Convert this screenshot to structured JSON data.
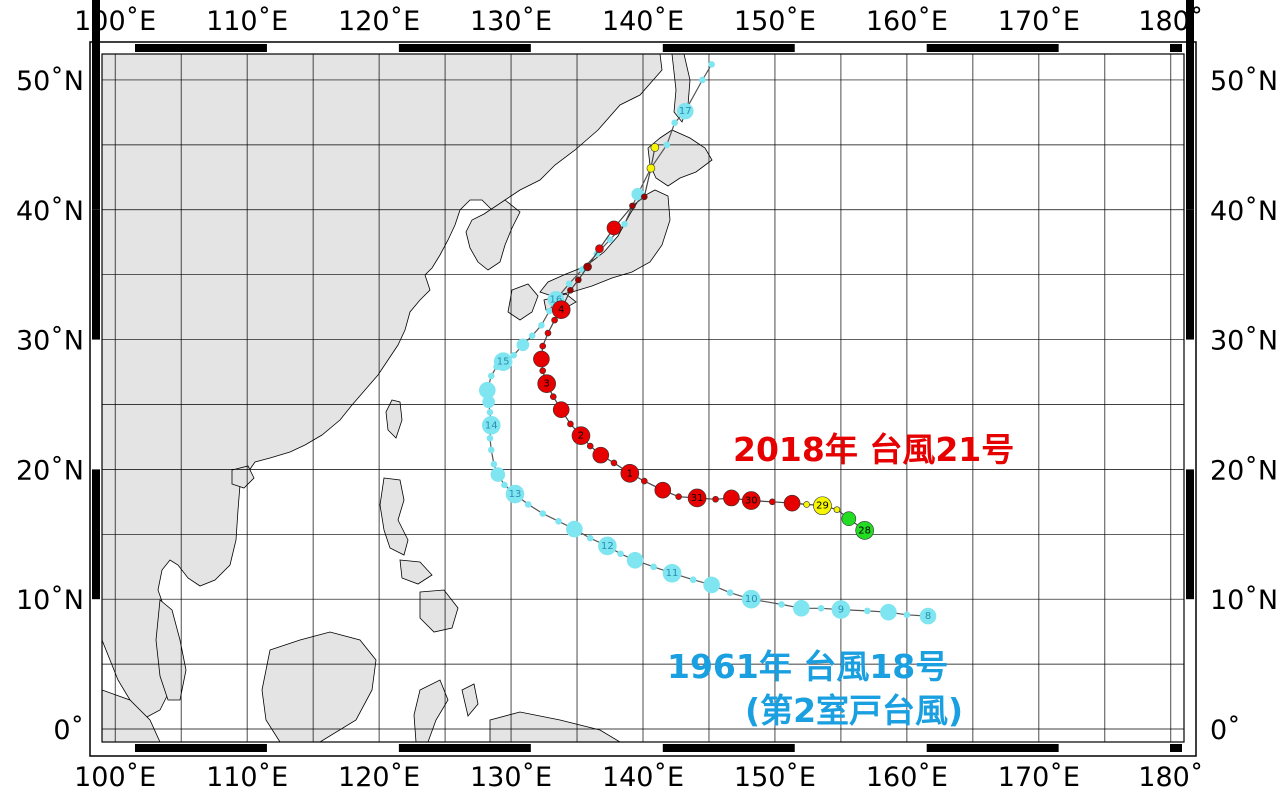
{
  "axes": {
    "lon_labels": [
      "100˚E",
      "110˚E",
      "120˚E",
      "130˚E",
      "140˚E",
      "150˚E",
      "160˚E",
      "170˚E",
      "180˚"
    ],
    "lat_labels": [
      "50˚N",
      "40˚N",
      "30˚N",
      "20˚N",
      "10˚N",
      "0˚"
    ],
    "lon_range": [
      99,
      181
    ],
    "lat_range": [
      -1,
      52
    ],
    "grid_step_deg": 5
  },
  "colors": {
    "land": "#e4e4e4",
    "sea": "#ffffff",
    "track_1961": "#7fe5f0",
    "track_1961_text": "#1a9fe0",
    "track_2018_red": "#e60000",
    "track_2018_dark": "#a00000",
    "track_2018_yellow": "#f6f600",
    "track_2018_green": "#22dd22",
    "label_2018": "#e60000",
    "label_1961": "#1a9fe0"
  },
  "labels": {
    "typhoon_2018": "2018年 台風21号",
    "typhoon_1961_line1": "1961年 台風18号",
    "typhoon_1961_line2": "(第2室戸台風)"
  },
  "tracks": {
    "typhoon_2018": [
      {
        "lon": 156.8,
        "lat": 15.3,
        "r": 9,
        "c": "green",
        "n": "28"
      },
      {
        "lon": 155.6,
        "lat": 16.2,
        "r": 7,
        "c": "green"
      },
      {
        "lon": 154.7,
        "lat": 16.9,
        "r": 3,
        "c": "yellow"
      },
      {
        "lon": 153.6,
        "lat": 17.2,
        "r": 9,
        "c": "yellow",
        "n": "29"
      },
      {
        "lon": 152.4,
        "lat": 17.3,
        "r": 3,
        "c": "yellow"
      },
      {
        "lon": 151.3,
        "lat": 17.4,
        "r": 8,
        "c": "red"
      },
      {
        "lon": 149.8,
        "lat": 17.5,
        "r": 3,
        "c": "red"
      },
      {
        "lon": 148.2,
        "lat": 17.6,
        "r": 9,
        "c": "red",
        "n": "30"
      },
      {
        "lon": 146.7,
        "lat": 17.8,
        "r": 8,
        "c": "red"
      },
      {
        "lon": 145.5,
        "lat": 17.7,
        "r": 3,
        "c": "red"
      },
      {
        "lon": 144.1,
        "lat": 17.8,
        "r": 9,
        "c": "red",
        "n": "31"
      },
      {
        "lon": 142.7,
        "lat": 17.9,
        "r": 3,
        "c": "red"
      },
      {
        "lon": 141.5,
        "lat": 18.4,
        "r": 8,
        "c": "red"
      },
      {
        "lon": 140.1,
        "lat": 19.1,
        "r": 3,
        "c": "red"
      },
      {
        "lon": 139.0,
        "lat": 19.7,
        "r": 9,
        "c": "red",
        "n": "1"
      },
      {
        "lon": 137.8,
        "lat": 20.5,
        "r": 3,
        "c": "red"
      },
      {
        "lon": 136.8,
        "lat": 21.1,
        "r": 8,
        "c": "red"
      },
      {
        "lon": 136.0,
        "lat": 21.8,
        "r": 3,
        "c": "red"
      },
      {
        "lon": 135.3,
        "lat": 22.6,
        "r": 9,
        "c": "red",
        "n": "2"
      },
      {
        "lon": 134.5,
        "lat": 23.5,
        "r": 3,
        "c": "red"
      },
      {
        "lon": 133.8,
        "lat": 24.6,
        "r": 8,
        "c": "red"
      },
      {
        "lon": 133.2,
        "lat": 25.6,
        "r": 3,
        "c": "red"
      },
      {
        "lon": 132.7,
        "lat": 26.6,
        "r": 9,
        "c": "red",
        "n": "3"
      },
      {
        "lon": 132.4,
        "lat": 27.6,
        "r": 3,
        "c": "red"
      },
      {
        "lon": 132.3,
        "lat": 28.5,
        "r": 8,
        "c": "red"
      },
      {
        "lon": 132.4,
        "lat": 29.5,
        "r": 3,
        "c": "red"
      },
      {
        "lon": 132.8,
        "lat": 30.5,
        "r": 3,
        "c": "red"
      },
      {
        "lon": 133.3,
        "lat": 31.5,
        "r": 3,
        "c": "red"
      },
      {
        "lon": 133.8,
        "lat": 32.3,
        "r": 9,
        "c": "red",
        "n": "4"
      },
      {
        "lon": 134.5,
        "lat": 33.8,
        "r": 3,
        "c": "dark"
      },
      {
        "lon": 135.1,
        "lat": 34.6,
        "r": 3,
        "c": "dark"
      },
      {
        "lon": 135.8,
        "lat": 35.6,
        "r": 4,
        "c": "dark"
      },
      {
        "lon": 136.7,
        "lat": 37.0,
        "r": 4,
        "c": "red"
      },
      {
        "lon": 137.8,
        "lat": 38.6,
        "r": 7,
        "c": "red"
      },
      {
        "lon": 139.2,
        "lat": 40.3,
        "r": 3,
        "c": "dark"
      },
      {
        "lon": 140.1,
        "lat": 41.0,
        "r": 3,
        "c": "dark"
      },
      {
        "lon": 140.6,
        "lat": 43.2,
        "r": 4,
        "c": "yellow"
      },
      {
        "lon": 140.9,
        "lat": 44.8,
        "r": 4,
        "c": "yellow"
      }
    ],
    "typhoon_1961": [
      {
        "lon": 161.6,
        "lat": 8.7,
        "r": 8,
        "n": "8"
      },
      {
        "lon": 160.0,
        "lat": 8.8,
        "r": 3
      },
      {
        "lon": 158.6,
        "lat": 9.0,
        "r": 8
      },
      {
        "lon": 157.0,
        "lat": 9.1,
        "r": 3
      },
      {
        "lon": 155.0,
        "lat": 9.2,
        "r": 9,
        "n": "9"
      },
      {
        "lon": 153.5,
        "lat": 9.3,
        "r": 3
      },
      {
        "lon": 152.0,
        "lat": 9.3,
        "r": 8
      },
      {
        "lon": 150.5,
        "lat": 9.6,
        "r": 3
      },
      {
        "lon": 148.2,
        "lat": 10.0,
        "r": 9,
        "n": "10"
      },
      {
        "lon": 146.6,
        "lat": 10.5,
        "r": 3
      },
      {
        "lon": 145.2,
        "lat": 11.1,
        "r": 8
      },
      {
        "lon": 143.8,
        "lat": 11.5,
        "r": 3
      },
      {
        "lon": 142.2,
        "lat": 12.0,
        "r": 9,
        "n": "11"
      },
      {
        "lon": 140.8,
        "lat": 12.5,
        "r": 3
      },
      {
        "lon": 139.4,
        "lat": 13.0,
        "r": 8
      },
      {
        "lon": 138.3,
        "lat": 13.5,
        "r": 3
      },
      {
        "lon": 137.3,
        "lat": 14.1,
        "r": 9,
        "n": "12"
      },
      {
        "lon": 136.0,
        "lat": 14.7,
        "r": 3
      },
      {
        "lon": 134.8,
        "lat": 15.4,
        "r": 8
      },
      {
        "lon": 133.6,
        "lat": 16.0,
        "r": 3
      },
      {
        "lon": 132.4,
        "lat": 16.6,
        "r": 3
      },
      {
        "lon": 131.3,
        "lat": 17.3,
        "r": 3
      },
      {
        "lon": 130.3,
        "lat": 18.1,
        "r": 9,
        "n": "13"
      },
      {
        "lon": 129.5,
        "lat": 18.8,
        "r": 3
      },
      {
        "lon": 129.0,
        "lat": 19.6,
        "r": 7
      },
      {
        "lon": 128.7,
        "lat": 20.4,
        "r": 3
      },
      {
        "lon": 128.5,
        "lat": 21.5,
        "r": 3
      },
      {
        "lon": 128.4,
        "lat": 22.4,
        "r": 3
      },
      {
        "lon": 128.5,
        "lat": 23.4,
        "r": 9,
        "n": "14"
      },
      {
        "lon": 128.4,
        "lat": 24.4,
        "r": 3
      },
      {
        "lon": 128.3,
        "lat": 25.2,
        "r": 6
      },
      {
        "lon": 128.2,
        "lat": 26.1,
        "r": 8
      },
      {
        "lon": 128.5,
        "lat": 27.2,
        "r": 3
      },
      {
        "lon": 128.9,
        "lat": 27.9,
        "r": 3
      },
      {
        "lon": 129.4,
        "lat": 28.3,
        "r": 9,
        "n": "15"
      },
      {
        "lon": 130.2,
        "lat": 28.8,
        "r": 3
      },
      {
        "lon": 130.9,
        "lat": 29.6,
        "r": 6
      },
      {
        "lon": 131.6,
        "lat": 30.3,
        "r": 3
      },
      {
        "lon": 132.3,
        "lat": 31.1,
        "r": 3
      },
      {
        "lon": 132.9,
        "lat": 32.2,
        "r": 3
      },
      {
        "lon": 133.4,
        "lat": 33.1,
        "r": 8,
        "n": "16"
      },
      {
        "lon": 134.4,
        "lat": 34.3,
        "r": 3
      },
      {
        "lon": 135.4,
        "lat": 35.4,
        "r": 3
      },
      {
        "lon": 136.5,
        "lat": 36.6,
        "r": 3
      },
      {
        "lon": 137.5,
        "lat": 37.7,
        "r": 3
      },
      {
        "lon": 138.6,
        "lat": 38.9,
        "r": 3
      },
      {
        "lon": 139.6,
        "lat": 41.2,
        "r": 6
      },
      {
        "lon": 140.6,
        "lat": 43.2,
        "r": 3
      },
      {
        "lon": 141.8,
        "lat": 45.0,
        "r": 3
      },
      {
        "lon": 142.4,
        "lat": 46.7,
        "r": 3
      },
      {
        "lon": 143.2,
        "lat": 47.6,
        "r": 8,
        "n": "17"
      },
      {
        "lon": 144.5,
        "lat": 50.0,
        "r": 3
      },
      {
        "lon": 145.2,
        "lat": 51.2,
        "r": 3
      }
    ]
  }
}
